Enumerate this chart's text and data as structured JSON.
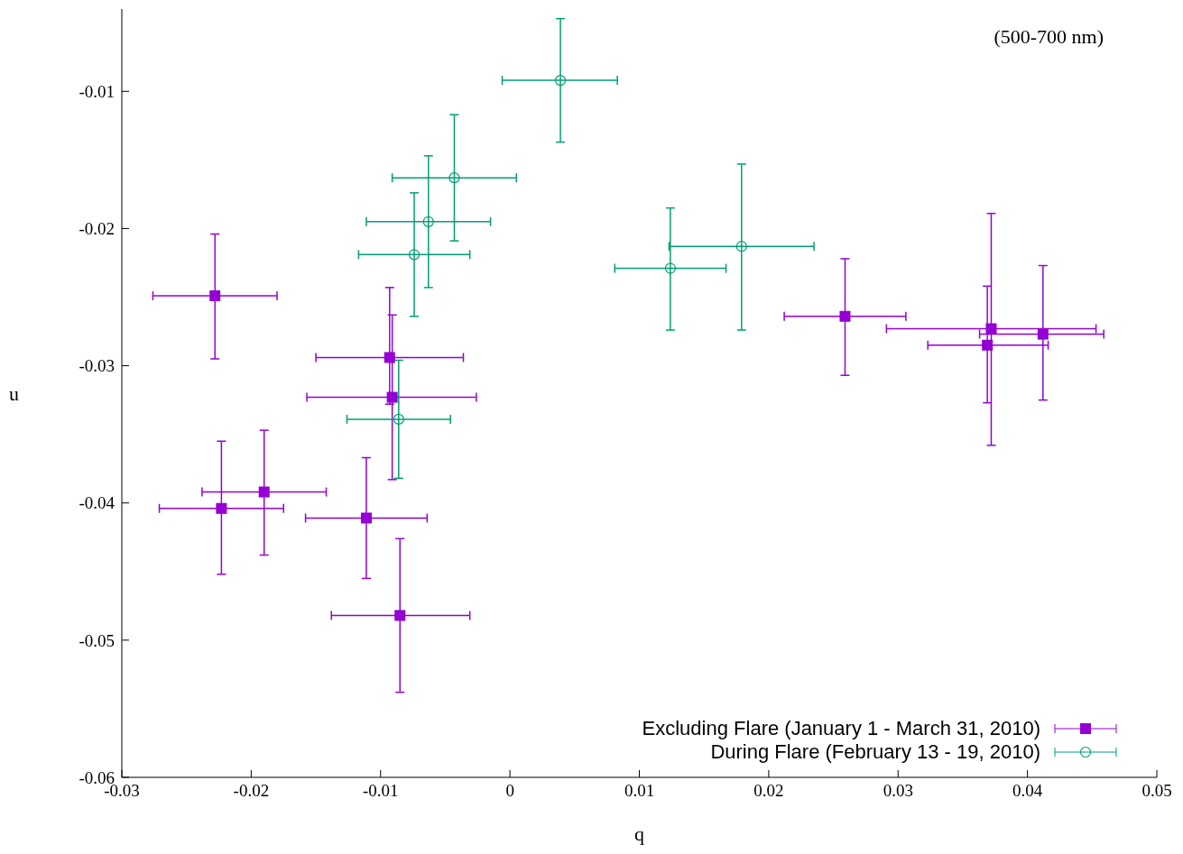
{
  "chart_data": {
    "type": "scatter",
    "xlabel": "q",
    "ylabel": "u",
    "annotations": [
      "(500-700 nm)"
    ],
    "xlim": [
      -0.03,
      0.05
    ],
    "xticks": [
      -0.03,
      -0.02,
      -0.01,
      0,
      0.01,
      0.02,
      0.03,
      0.04,
      0.05
    ],
    "ylim": [
      -0.06,
      -0.004
    ],
    "yticks": [
      -0.06,
      -0.05,
      -0.04,
      -0.03,
      -0.02,
      -0.01
    ],
    "grid": false,
    "legend": "bottom right",
    "series": [
      {
        "name": "Excluding Flare (January 1 - March 31, 2010)",
        "color": "#9400d3",
        "marker": "square",
        "x": [
          -0.0228,
          -0.0093,
          -0.0091,
          -0.019,
          -0.0223,
          -0.0111,
          -0.0085,
          0.0259,
          0.0372,
          0.0369,
          0.0412
        ],
        "values": [
          -0.0249,
          -0.0294,
          -0.0323,
          -0.0392,
          -0.0404,
          -0.0411,
          -0.0482,
          -0.0264,
          -0.0273,
          -0.0285,
          -0.0277
        ],
        "xerrors": [
          [
            -0.0276,
            -0.018
          ],
          [
            -0.015,
            -0.0036
          ],
          [
            -0.0157,
            -0.0026
          ],
          [
            -0.0238,
            -0.0142
          ],
          [
            -0.0271,
            -0.0175
          ],
          [
            -0.0158,
            -0.0064
          ],
          [
            -0.0138,
            -0.0031
          ],
          [
            0.0212,
            0.0306
          ],
          [
            0.0291,
            0.0453
          ],
          [
            0.0323,
            0.0416
          ],
          [
            0.0363,
            0.0459
          ]
        ],
        "errors": [
          [
            -0.0295,
            -0.0204
          ],
          [
            -0.0328,
            -0.0243
          ],
          [
            -0.0383,
            -0.0263
          ],
          [
            -0.0438,
            -0.0347
          ],
          [
            -0.0452,
            -0.0355
          ],
          [
            -0.0455,
            -0.0367
          ],
          [
            -0.0538,
            -0.0426
          ],
          [
            -0.0307,
            -0.0222
          ],
          [
            -0.0358,
            -0.0189
          ],
          [
            -0.0327,
            -0.0242
          ],
          [
            -0.0325,
            -0.0227
          ]
        ]
      },
      {
        "name": "During Flare (February 13 - 19, 2010)",
        "color": "#009e73",
        "marker": "circle",
        "x": [
          0.0039,
          -0.0043,
          -0.0063,
          -0.0074,
          -0.0086,
          0.0124,
          0.0179
        ],
        "values": [
          -0.0092,
          -0.0163,
          -0.0195,
          -0.0219,
          -0.0339,
          -0.0229,
          -0.0213
        ],
        "xerrors": [
          [
            -0.0006,
            0.0083
          ],
          [
            -0.0091,
            0.0005
          ],
          [
            -0.0111,
            -0.0015
          ],
          [
            -0.0117,
            -0.0031
          ],
          [
            -0.0126,
            -0.0046
          ],
          [
            0.0081,
            0.0167
          ],
          [
            0.0123,
            0.0235
          ]
        ],
        "errors": [
          [
            -0.0137,
            -0.0047
          ],
          [
            -0.0209,
            -0.0117
          ],
          [
            -0.0243,
            -0.0147
          ],
          [
            -0.0264,
            -0.0174
          ],
          [
            -0.0382,
            -0.0296
          ],
          [
            -0.0274,
            -0.0185
          ],
          [
            -0.0274,
            -0.0153
          ]
        ]
      }
    ]
  }
}
